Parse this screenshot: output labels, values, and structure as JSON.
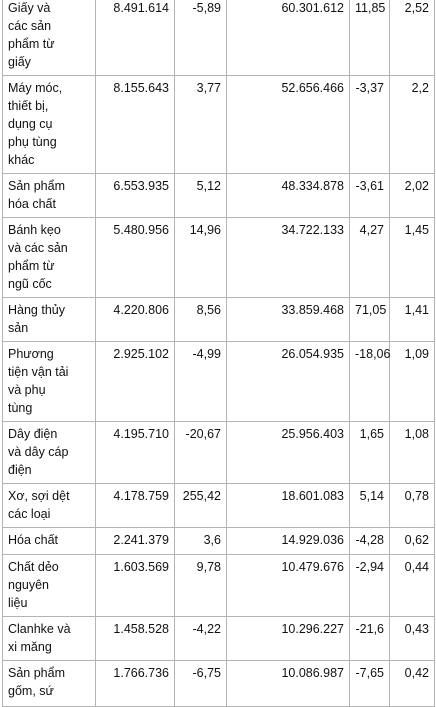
{
  "table": {
    "rows": [
      {
        "name": "Giấy và\ncác sản\nphẩm từ\ngiấy",
        "c1": "8.491.614",
        "c2": "-5,89",
        "c3": "60.301.612",
        "c4": "11,85",
        "c5": "2,52"
      },
      {
        "name": "Máy móc,\nthiết bị,\ndụng cụ\nphụ tùng\nkhác",
        "c1": "8.155.643",
        "c2": "3,77",
        "c3": "52.656.466",
        "c4": "-3,37",
        "c5": "2,2"
      },
      {
        "name": "Sản phẩm\nhóa chất",
        "c1": "6.553.935",
        "c2": "5,12",
        "c3": "48.334.878",
        "c4": "-3,61",
        "c5": "2,02"
      },
      {
        "name": "Bánh kẹo\nvà các sản\nphẩm từ\nngũ cốc",
        "c1": "5.480.956",
        "c2": "14,96",
        "c3": "34.722.133",
        "c4": "4,27",
        "c5": "1,45"
      },
      {
        "name": "Hàng thủy\nsản",
        "c1": "4.220.806",
        "c2": "8,56",
        "c3": "33.859.468",
        "c4": "71,05",
        "c5": "1,41"
      },
      {
        "name": "Phương\ntiện vận tải\nvà phụ\ntùng",
        "c1": "2.925.102",
        "c2": "-4,99",
        "c3": "26.054.935",
        "c4": "-18,06",
        "c5": "1,09"
      },
      {
        "name": "Dây điện\nvà dây cáp\nđiện",
        "c1": "4.195.710",
        "c2": "-20,67",
        "c3": "25.956.403",
        "c4": "1,65",
        "c5": "1,08"
      },
      {
        "name": "Xơ, sợi dệt\ncác loại",
        "c1": "4.178.759",
        "c2": "255,42",
        "c3": "18.601.083",
        "c4": "5,14",
        "c5": "0,78"
      },
      {
        "name": "Hóa chất",
        "c1": "2.241.379",
        "c2": "3,6",
        "c3": "14.929.036",
        "c4": "-4,28",
        "c5": "0,62"
      },
      {
        "name": "Chất dẻo\nnguyên\nliệu",
        "c1": "1.603.569",
        "c2": "9,78",
        "c3": "10.479.676",
        "c4": "-2,94",
        "c5": "0,44"
      },
      {
        "name": "Clanhke và\nxi măng",
        "c1": "1.458.528",
        "c2": "-4,22",
        "c3": "10.296.227",
        "c4": "-21,6",
        "c5": "0,43"
      },
      {
        "name": "Sản phẩm\ngốm, sứ",
        "c1": "1.766.736",
        "c2": "-6,75",
        "c3": "10.086.987",
        "c4": "-7,65",
        "c5": "0,42"
      }
    ]
  }
}
